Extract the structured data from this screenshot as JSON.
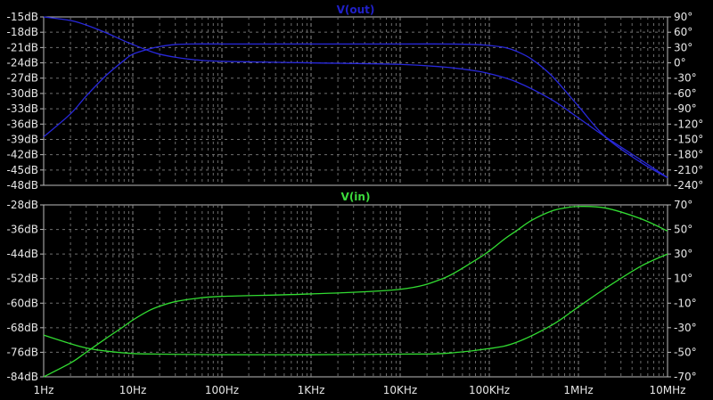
{
  "chart_data": [
    {
      "type": "line",
      "title": "V(out)",
      "x_scale": "log",
      "xlim": [
        "1Hz",
        "10MHz"
      ],
      "xlim_hz": [
        1,
        10000000
      ],
      "x_ticks": [
        "1Hz",
        "10Hz",
        "100Hz",
        "1KHz",
        "10KHz",
        "100KHz",
        "1MHz",
        "10MHz"
      ],
      "y_left_ticks": [
        "-15dB",
        "-18dB",
        "-21dB",
        "-24dB",
        "-27dB",
        "-30dB",
        "-33dB",
        "-36dB",
        "-39dB",
        "-42dB",
        "-45dB",
        "-48dB"
      ],
      "y_right_ticks": [
        "90°",
        "60°",
        "30°",
        "0°",
        "-30°",
        "-60°",
        "-90°",
        "-120°",
        "-150°",
        "-180°",
        "-210°",
        "-240°"
      ],
      "ylim_left_db": [
        -48,
        -15
      ],
      "ylim_right_deg": [
        -240,
        90
      ],
      "grid": true,
      "title_color": "#2020c8",
      "line_color": "#2828dc",
      "series": [
        {
          "axis": "left",
          "x_hz": [
            1,
            2,
            3,
            5,
            8,
            10,
            15,
            20,
            30,
            50,
            100,
            1000,
            10000,
            30000,
            70000,
            100000,
            150000,
            200000,
            300000,
            500000,
            1000000,
            2000000,
            5000000,
            10000000
          ],
          "y": [
            -38.5,
            -34,
            -30.5,
            -26.5,
            -23.5,
            -22.3,
            -21.3,
            -20.8,
            -20.4,
            -20.3,
            -20.3,
            -20.3,
            -20.3,
            -20.3,
            -20.4,
            -20.6,
            -21,
            -21.7,
            -23.3,
            -26.5,
            -32.5,
            -38.5,
            -43.5,
            -46.5
          ]
        },
        {
          "axis": "right",
          "x_hz": [
            1,
            2,
            3,
            5,
            8,
            10,
            15,
            20,
            30,
            50,
            100,
            1000,
            10000,
            30000,
            60000,
            100000,
            200000,
            500000,
            1000000,
            2000000,
            5000000,
            10000000
          ],
          "y": [
            90,
            83,
            74,
            59,
            43,
            36,
            24,
            17,
            11,
            6,
            3,
            0,
            -3,
            -8,
            -14,
            -21,
            -37,
            -72,
            -108,
            -145,
            -190,
            -225
          ]
        }
      ]
    },
    {
      "type": "line",
      "title": "V(in)",
      "x_scale": "log",
      "xlim": [
        "1Hz",
        "10MHz"
      ],
      "xlim_hz": [
        1,
        10000000
      ],
      "x_ticks": [
        "1Hz",
        "10Hz",
        "100Hz",
        "1KHz",
        "10KHz",
        "100KHz",
        "1MHz",
        "10MHz"
      ],
      "y_left_ticks": [
        "-28dB",
        "-36dB",
        "-44dB",
        "-52dB",
        "-60dB",
        "-68dB",
        "-76dB",
        "-84dB"
      ],
      "y_right_ticks": [
        "70°",
        "50°",
        "30°",
        "10°",
        "-10°",
        "-30°",
        "-50°",
        "-70°"
      ],
      "ylim_left_db": [
        -84,
        -28
      ],
      "ylim_right_deg": [
        -70,
        70
      ],
      "grid": true,
      "title_color": "#3cdc3c",
      "line_color": "#32dc32",
      "series": [
        {
          "axis": "left",
          "x_hz": [
            1,
            2,
            3,
            5,
            8,
            10,
            15,
            20,
            30,
            50,
            100,
            1000,
            10000,
            30000,
            70000,
            100000,
            150000,
            200000,
            300000,
            500000,
            700000,
            1000000,
            2000000,
            5000000,
            10000000
          ],
          "y": [
            -84,
            -79.5,
            -76,
            -71.5,
            -67.5,
            -65.5,
            -62.5,
            -61,
            -59.5,
            -58.5,
            -57.8,
            -57,
            -55.5,
            -52,
            -46,
            -43,
            -39,
            -36.5,
            -33,
            -30,
            -29,
            -28.5,
            -29,
            -32.5,
            -36.5
          ]
        },
        {
          "axis": "right",
          "x_hz": [
            1,
            2,
            3,
            5,
            10,
            20,
            50,
            100,
            1000,
            10000,
            30000,
            100000,
            200000,
            500000,
            1000000,
            2000000,
            5000000,
            10000000
          ],
          "y": [
            -36,
            -43,
            -46.5,
            -49,
            -51,
            -51.5,
            -51.8,
            -52,
            -52,
            -51.5,
            -51,
            -47,
            -42,
            -28,
            -13,
            2,
            20,
            30
          ]
        }
      ]
    }
  ]
}
